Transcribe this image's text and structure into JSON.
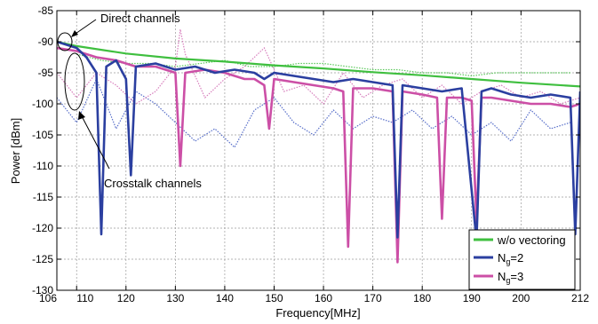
{
  "chart_data": {
    "type": "line",
    "title": "",
    "xlabel": "Frequency[MHz]",
    "ylabel": "Power [dBm]",
    "xlim": [
      106,
      212
    ],
    "ylim": [
      -130,
      -85
    ],
    "x_ticks": [
      106,
      110,
      120,
      130,
      140,
      150,
      160,
      170,
      180,
      190,
      200,
      212
    ],
    "y_ticks": [
      -130,
      -125,
      -120,
      -115,
      -110,
      -105,
      -100,
      -95,
      -90,
      -85
    ],
    "grid": true,
    "legend_position": "bottom-right",
    "series": [
      {
        "name": "w/o vectoring",
        "color": "#3fbf3f",
        "kind": "direct",
        "x": [
          106,
          110,
          120,
          130,
          140,
          150,
          160,
          170,
          180,
          190,
          200,
          212
        ],
        "y": [
          -90,
          -90.7,
          -91.9,
          -92.7,
          -93.2,
          -93.8,
          -94.3,
          -94.9,
          -95.4,
          -96.0,
          -96.6,
          -97.2
        ]
      },
      {
        "name": "N_g=2",
        "color": "#2b3fa0",
        "kind": "vectored",
        "x": [
          106,
          110,
          112,
          114,
          115,
          116,
          118,
          120,
          121,
          122,
          126,
          130,
          134,
          138,
          142,
          146,
          148,
          150,
          154,
          158,
          162,
          166,
          170,
          174,
          175,
          176,
          180,
          184,
          188,
          191,
          192,
          194,
          198,
          202,
          206,
          210,
          211,
          212
        ],
        "y": [
          -90,
          -91,
          -92.5,
          -95,
          -121,
          -94,
          -93,
          -96,
          -111.5,
          -94,
          -93.5,
          -94.5,
          -94,
          -95,
          -94.5,
          -95,
          -96,
          -95,
          -95.5,
          -96,
          -96.5,
          -96,
          -96.5,
          -97,
          -121.5,
          -97,
          -97.5,
          -98,
          -97.5,
          -122,
          -98,
          -97.5,
          -98.5,
          -99,
          -98.5,
          -99,
          -121,
          -98
        ]
      },
      {
        "name": "N_g=3",
        "color": "#cc4fa6",
        "kind": "vectored",
        "x": [
          106,
          110,
          114,
          118,
          122,
          126,
          128,
          130,
          131,
          132,
          136,
          140,
          144,
          146,
          148,
          149,
          150,
          154,
          158,
          162,
          164,
          165,
          166,
          170,
          174,
          175,
          176,
          180,
          183,
          184,
          185,
          188,
          190,
          191,
          192,
          194,
          198,
          202,
          206,
          210,
          212
        ],
        "y": [
          -91,
          -91.5,
          -92.5,
          -93,
          -94,
          -94,
          -94.5,
          -95,
          -110,
          -95,
          -94.5,
          -95,
          -96,
          -96,
          -97,
          -104,
          -96,
          -96.5,
          -97,
          -97.5,
          -98,
          -123,
          -97.5,
          -97.5,
          -98,
          -125.5,
          -98,
          -98.5,
          -99,
          -118.5,
          -99,
          -99,
          -99.5,
          -119,
          -99,
          -99,
          -99.5,
          -100,
          -100,
          -100.5,
          -100
        ]
      }
    ],
    "crosstalk_series": [
      {
        "color": "#3fbf3f",
        "x": [
          110,
          115,
          120,
          125,
          130,
          135,
          140,
          145,
          150,
          155,
          160,
          165,
          170,
          175,
          180,
          185,
          190,
          195,
          200,
          205,
          210
        ],
        "y": [
          -92,
          -93,
          -93.5,
          -93.5,
          -94,
          -93.5,
          -93,
          -94,
          -94,
          -93.5,
          -93.5,
          -94,
          -94.5,
          -94.5,
          -95,
          -95,
          -95.5,
          -95,
          -95,
          -95,
          -95
        ]
      },
      {
        "color": "#3a55c0",
        "x": [
          106,
          108,
          110,
          114,
          118,
          122,
          126,
          130,
          134,
          138,
          142,
          146,
          150,
          154,
          158,
          162,
          166,
          170,
          174,
          178,
          182,
          186,
          190,
          194,
          198,
          202,
          206,
          210
        ],
        "y": [
          -99,
          -101,
          -103,
          -96,
          -104,
          -98,
          -100,
          -103,
          -106,
          -104,
          -107,
          -101,
          -99,
          -103,
          -105,
          -101,
          -104,
          -102,
          -103,
          -101,
          -104,
          -102,
          -105,
          -103,
          -106,
          -101,
          -104,
          -103
        ]
      },
      {
        "color": "#d066b0",
        "x": [
          106,
          108,
          110,
          114,
          118,
          122,
          126,
          130,
          131,
          132,
          136,
          140,
          144,
          148,
          152,
          156,
          160,
          164,
          168,
          172,
          176,
          180,
          184,
          188,
          192,
          196,
          200,
          204,
          208,
          212
        ],
        "y": [
          -95,
          -97,
          -99,
          -95,
          -97,
          -100,
          -98,
          -94,
          -88,
          -92,
          -99,
          -96,
          -94,
          -91,
          -98,
          -97,
          -100,
          -95,
          -99,
          -97,
          -96,
          -99,
          -97,
          -100,
          -98,
          -97,
          -99,
          -98,
          -100,
          -99
        ]
      }
    ],
    "annotations": [
      {
        "text": "Direct channels",
        "x": 108,
        "y": -89.5
      },
      {
        "text": "Crosstalk channels",
        "x": 108.5,
        "y": -100
      }
    ]
  }
}
